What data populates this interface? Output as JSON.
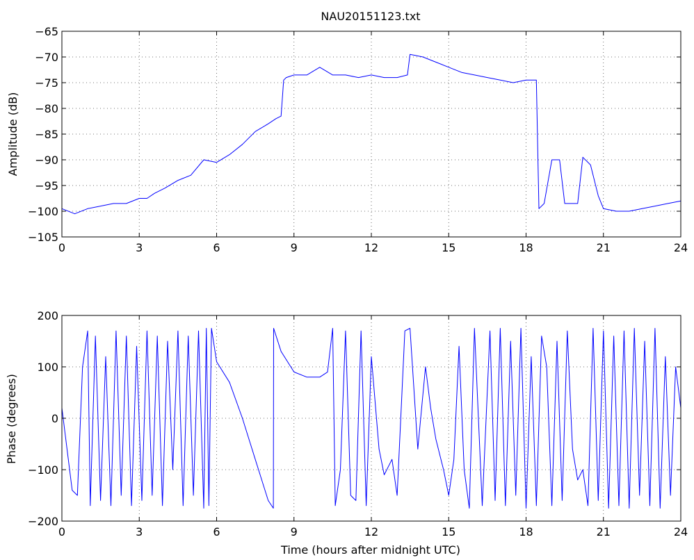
{
  "chart_data": [
    {
      "type": "line",
      "title": "NAU20151123.txt",
      "xlabel": "",
      "ylabel": "Amplitude (dB)",
      "xlim": [
        0,
        24
      ],
      "ylim": [
        -105,
        -65
      ],
      "xticks": [
        0,
        3,
        6,
        9,
        12,
        15,
        18,
        21,
        24
      ],
      "yticks": [
        -105,
        -100,
        -95,
        -90,
        -85,
        -80,
        -75,
        -70,
        -65
      ],
      "grid": true,
      "color": "#0000ff",
      "series": [
        {
          "x": [
            0,
            0.5,
            1.0,
            1.5,
            2.0,
            2.5,
            3.0,
            3.3,
            3.6,
            4.0,
            4.5,
            5.0,
            5.5,
            6.0,
            6.5,
            7.0,
            7.5,
            8.0,
            8.3,
            8.5,
            8.6,
            8.7,
            9.0,
            9.5,
            10.0,
            10.5,
            11.0,
            11.5,
            12.0,
            12.5,
            13.0,
            13.4,
            13.5,
            14.0,
            14.5,
            15.0,
            15.5,
            16.0,
            16.5,
            17.0,
            17.5,
            18.0,
            18.4,
            18.5,
            18.7,
            19.0,
            19.3,
            19.5,
            20.0,
            20.2,
            20.5,
            20.8,
            21.0,
            21.5,
            22.0,
            22.5,
            23.0,
            23.5,
            24.0
          ],
          "y": [
            -99.5,
            -100.5,
            -99.5,
            -99,
            -98.5,
            -98.5,
            -97.5,
            -97.5,
            -96.5,
            -95.5,
            -94,
            -93,
            -90,
            -90.5,
            -89,
            -87,
            -84.5,
            -83,
            -82,
            -81.5,
            -74.5,
            -74,
            -73.5,
            -73.5,
            -72,
            -73.5,
            -73.5,
            -74,
            -73.5,
            -74,
            -74,
            -73.5,
            -69.5,
            -70,
            -71,
            -72,
            -73,
            -73.5,
            -74,
            -74.5,
            -75,
            -74.5,
            -74.5,
            -99.5,
            -98.5,
            -90,
            -90,
            -98.5,
            -98.5,
            -89.5,
            -91,
            -97,
            -99.5,
            -100,
            -100,
            -99.5,
            -99,
            -98.5,
            -98
          ]
        }
      ]
    },
    {
      "type": "line",
      "title": "",
      "xlabel": "Time (hours after midnight UTC)",
      "ylabel": "Phase (degrees)",
      "xlim": [
        0,
        24
      ],
      "ylim": [
        -200,
        200
      ],
      "xticks": [
        0,
        3,
        6,
        9,
        12,
        15,
        18,
        21,
        24
      ],
      "yticks": [
        -200,
        -100,
        0,
        100,
        200
      ],
      "grid": true,
      "color": "#0000ff",
      "series": [
        {
          "x": [
            0,
            0.2,
            0.4,
            0.6,
            0.8,
            1.0,
            1.1,
            1.3,
            1.5,
            1.7,
            1.9,
            2.1,
            2.3,
            2.5,
            2.7,
            2.9,
            3.1,
            3.3,
            3.5,
            3.7,
            3.9,
            4.1,
            4.3,
            4.5,
            4.7,
            4.9,
            5.1,
            5.3,
            5.5,
            5.6,
            5.7,
            5.8,
            6.0,
            6.5,
            7.0,
            7.5,
            8.0,
            8.2,
            8.21,
            8.5,
            9.0,
            9.5,
            10.0,
            10.3,
            10.5,
            10.6,
            10.8,
            11.0,
            11.2,
            11.4,
            11.6,
            11.8,
            12.0,
            12.3,
            12.5,
            12.8,
            13.0,
            13.3,
            13.5,
            13.8,
            14.1,
            14.3,
            14.5,
            14.8,
            15.0,
            15.2,
            15.4,
            15.6,
            15.8,
            16.0,
            16.3,
            16.6,
            16.8,
            17.0,
            17.2,
            17.4,
            17.6,
            17.8,
            18.0,
            18.2,
            18.4,
            18.6,
            18.8,
            19.0,
            19.2,
            19.4,
            19.6,
            19.8,
            20.0,
            20.2,
            20.4,
            20.6,
            20.8,
            21.0,
            21.2,
            21.4,
            21.6,
            21.8,
            22.0,
            22.2,
            22.4,
            22.6,
            22.8,
            23.0,
            23.2,
            23.4,
            23.6,
            23.8,
            24.0
          ],
          "y": [
            20,
            -60,
            -140,
            -150,
            100,
            170,
            -170,
            160,
            -160,
            120,
            -170,
            170,
            -150,
            160,
            -170,
            140,
            -160,
            170,
            -150,
            160,
            -170,
            150,
            -100,
            170,
            -170,
            160,
            -150,
            170,
            -175,
            175,
            -170,
            175,
            110,
            70,
            0,
            -80,
            -160,
            -175,
            175,
            130,
            90,
            80,
            80,
            90,
            175,
            -170,
            -100,
            170,
            -150,
            -160,
            170,
            -170,
            120,
            -60,
            -110,
            -80,
            -150,
            170,
            175,
            -60,
            100,
            20,
            -40,
            -100,
            -150,
            -80,
            140,
            -100,
            -175,
            175,
            -170,
            170,
            -160,
            175,
            -170,
            150,
            -150,
            175,
            -175,
            120,
            -170,
            160,
            100,
            -170,
            150,
            -160,
            170,
            -60,
            -120,
            -100,
            -170,
            175,
            -160,
            170,
            -175,
            160,
            -170,
            170,
            -175,
            175,
            -150,
            150,
            -170,
            175,
            -175,
            120,
            -150,
            100,
            20
          ]
        }
      ]
    }
  ]
}
